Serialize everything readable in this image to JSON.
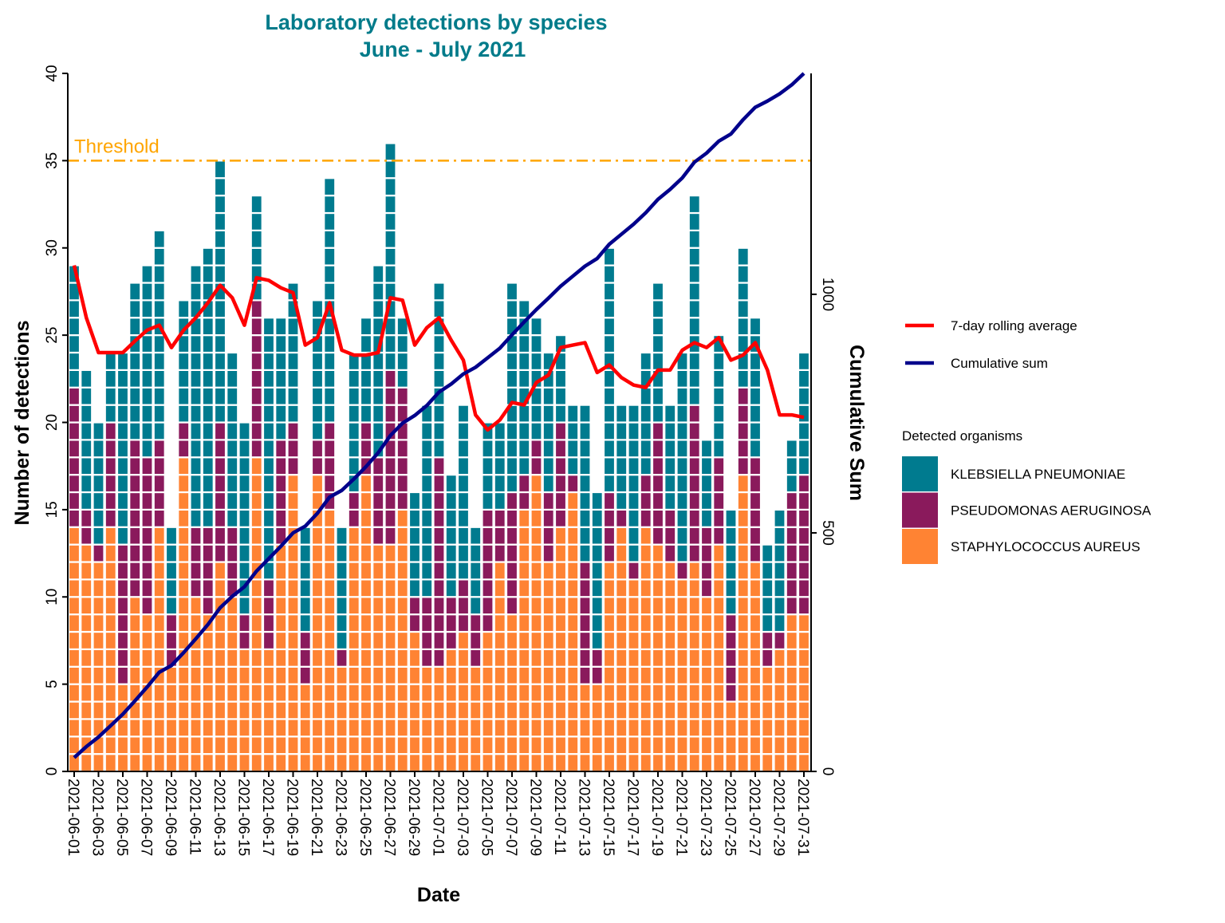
{
  "chart_data": {
    "type": "bar",
    "stacked": true,
    "title": "Laboratory detections by species",
    "subtitle": "June - July 2021",
    "xlabel": "Date",
    "ylabel": "Number of detections",
    "y2label": "Cumulative Sum",
    "ylim": [
      0,
      40
    ],
    "yticks": [
      0,
      5,
      10,
      15,
      20,
      25,
      30,
      35,
      40
    ],
    "y2lim": [
      0,
      1463
    ],
    "y2ticks": [
      0,
      500,
      1000
    ],
    "grid": false,
    "threshold": {
      "value": 35,
      "label": "Threshold",
      "color": "#FFA500",
      "style": "dashdot"
    },
    "categories": [
      "2021-06-01",
      "2021-06-02",
      "2021-06-03",
      "2021-06-04",
      "2021-06-05",
      "2021-06-06",
      "2021-06-07",
      "2021-06-08",
      "2021-06-09",
      "2021-06-10",
      "2021-06-11",
      "2021-06-12",
      "2021-06-13",
      "2021-06-14",
      "2021-06-15",
      "2021-06-16",
      "2021-06-17",
      "2021-06-18",
      "2021-06-19",
      "2021-06-20",
      "2021-06-21",
      "2021-06-22",
      "2021-06-23",
      "2021-06-24",
      "2021-06-25",
      "2021-06-26",
      "2021-06-27",
      "2021-06-28",
      "2021-06-29",
      "2021-06-30",
      "2021-07-01",
      "2021-07-02",
      "2021-07-03",
      "2021-07-04",
      "2021-07-05",
      "2021-07-06",
      "2021-07-07",
      "2021-07-08",
      "2021-07-09",
      "2021-07-10",
      "2021-07-11",
      "2021-07-12",
      "2021-07-13",
      "2021-07-14",
      "2021-07-15",
      "2021-07-16",
      "2021-07-17",
      "2021-07-18",
      "2021-07-19",
      "2021-07-20",
      "2021-07-21",
      "2021-07-22",
      "2021-07-23",
      "2021-07-24",
      "2021-07-25",
      "2021-07-26",
      "2021-07-27",
      "2021-07-28",
      "2021-07-29",
      "2021-07-30",
      "2021-07-31"
    ],
    "xtick_labels": [
      "2021-06-01",
      "2021-06-03",
      "2021-06-05",
      "2021-06-07",
      "2021-06-09",
      "2021-06-11",
      "2021-06-13",
      "2021-06-15",
      "2021-06-17",
      "2021-06-19",
      "2021-06-21",
      "2021-06-23",
      "2021-06-25",
      "2021-06-27",
      "2021-06-29",
      "2021-07-01",
      "2021-07-03",
      "2021-07-05",
      "2021-07-07",
      "2021-07-09",
      "2021-07-11",
      "2021-07-13",
      "2021-07-15",
      "2021-07-17",
      "2021-07-19",
      "2021-07-21",
      "2021-07-23",
      "2021-07-25",
      "2021-07-27",
      "2021-07-29",
      "2021-07-31"
    ],
    "legend_title": "Detected organisms",
    "legend_placement": "right",
    "series": [
      {
        "name": "STAPHYLOCOCCUS AUREUS",
        "color": "#FF8333",
        "values": [
          14,
          13,
          12,
          14,
          5,
          10,
          9,
          14,
          6,
          18,
          10,
          9,
          12,
          10,
          7,
          18,
          7,
          13,
          17,
          5,
          17,
          15,
          6,
          14,
          17,
          13,
          13,
          15,
          8,
          6,
          6,
          7,
          8,
          6,
          8,
          12,
          9,
          15,
          17,
          12,
          14,
          16,
          5,
          5,
          12,
          14,
          11,
          14,
          13,
          12,
          11,
          12,
          10,
          13,
          4,
          17,
          12,
          6,
          7,
          9,
          9
        ]
      },
      {
        "name": "PSEUDOMONAS AERUGINOSA",
        "color": "#8A1A5C",
        "values": [
          8,
          2,
          1,
          6,
          8,
          9,
          9,
          5,
          3,
          2,
          4,
          5,
          8,
          4,
          2,
          9,
          4,
          6,
          3,
          3,
          2,
          5,
          1,
          2,
          3,
          5,
          10,
          7,
          2,
          4,
          12,
          3,
          3,
          3,
          7,
          3,
          7,
          2,
          2,
          4,
          6,
          1,
          7,
          2,
          4,
          1,
          1,
          3,
          7,
          3,
          1,
          9,
          4,
          5,
          5,
          5,
          6,
          2,
          1,
          7,
          8
        ]
      },
      {
        "name": "KLEBSIELLA PNEUMONIAE",
        "color": "#007B8F",
        "values": [
          7,
          8,
          7,
          4,
          11,
          9,
          11,
          12,
          5,
          7,
          15,
          16,
          15,
          10,
          11,
          6,
          15,
          7,
          8,
          6,
          8,
          14,
          7,
          8,
          6,
          11,
          13,
          4,
          6,
          11,
          10,
          7,
          10,
          5,
          5,
          5,
          12,
          10,
          7,
          8,
          5,
          4,
          9,
          9,
          14,
          6,
          9,
          7,
          8,
          6,
          12,
          12,
          5,
          7,
          6,
          8,
          8,
          5,
          7,
          3,
          7
        ]
      }
    ],
    "lines": [
      {
        "name": "7-day rolling average",
        "color": "#FF0000",
        "axis": "left",
        "values": [
          29,
          26,
          24,
          24,
          24,
          24.67,
          25.29,
          25.57,
          24.29,
          25.29,
          26,
          26.86,
          27.86,
          27.14,
          25.57,
          28.29,
          28.14,
          27.71,
          27.43,
          24.43,
          24.86,
          26.86,
          24.14,
          23.86,
          23.86,
          24,
          27.14,
          27,
          24.43,
          25.43,
          26,
          24.71,
          23.57,
          20.43,
          19.57,
          20.14,
          21.14,
          21,
          22.29,
          22.71,
          24.29,
          24.43,
          24.57,
          22.86,
          23.29,
          22.57,
          22.14,
          22,
          23,
          23,
          24.14,
          24.57,
          24.29,
          24.86,
          23.57,
          23.86,
          24.57,
          23,
          20.43,
          20.43,
          20.29
        ]
      },
      {
        "name": "Cumulative sum",
        "color": "#00008B",
        "axis": "right",
        "values": [
          29,
          52,
          72,
          96,
          120,
          148,
          177,
          208,
          222,
          249,
          278,
          308,
          343,
          367,
          387,
          420,
          446,
          472,
          500,
          514,
          541,
          575,
          589,
          613,
          639,
          668,
          704,
          730,
          746,
          767,
          795,
          812,
          833,
          847,
          867,
          887,
          915,
          942,
          968,
          992,
          1017,
          1038,
          1059,
          1075,
          1105,
          1126,
          1147,
          1171,
          1199,
          1220,
          1244,
          1277,
          1296,
          1321,
          1336,
          1366,
          1392,
          1405,
          1420,
          1439,
          1463
        ]
      }
    ],
    "title_color": "#007B8A"
  }
}
